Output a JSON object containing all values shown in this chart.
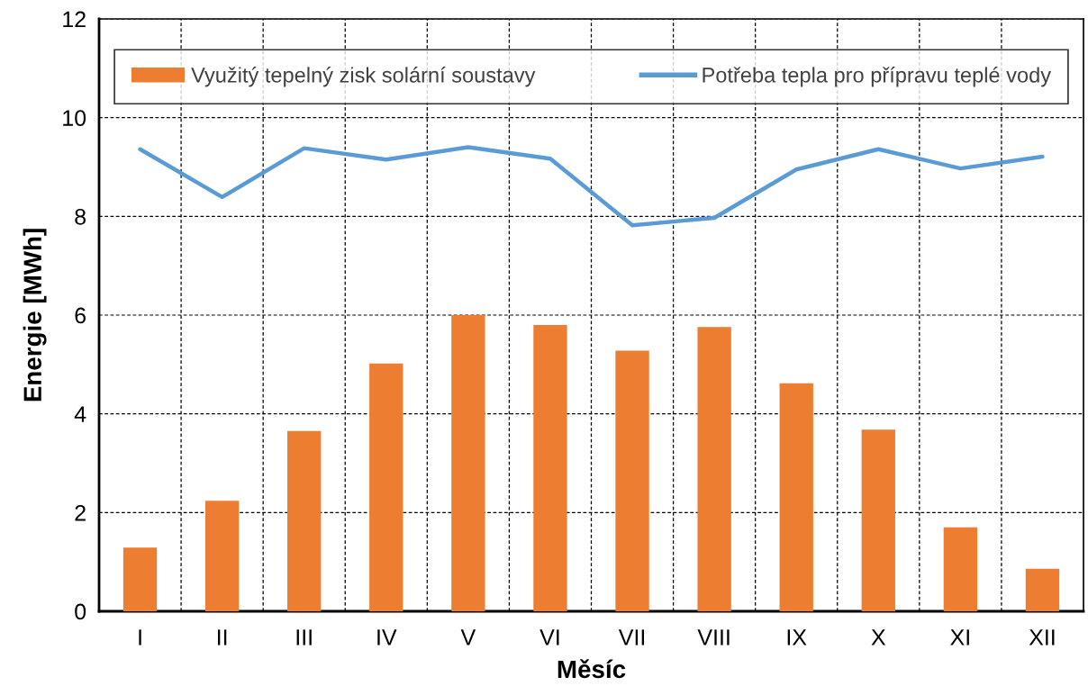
{
  "chart_data": {
    "type": "bar",
    "xlabel": "Měsíc",
    "ylabel": "Energie [MWh]",
    "categories": [
      "I",
      "II",
      "III",
      "IV",
      "V",
      "VI",
      "VII",
      "VIII",
      "IX",
      "X",
      "XI",
      "XII"
    ],
    "series": [
      {
        "name": "Využitý tepelný zisk solární soustavy",
        "color": "#ed7d31",
        "values": [
          1.29,
          2.24,
          3.65,
          5.02,
          6.0,
          5.8,
          5.28,
          5.76,
          4.62,
          3.68,
          1.7,
          0.86
        ]
      },
      {
        "name": "Potřeba tepla pro přípravu teplé vody",
        "type": "line",
        "color": "#5b9bd5",
        "values": [
          9.36,
          8.39,
          9.38,
          9.15,
          9.4,
          9.17,
          7.82,
          7.97,
          8.95,
          9.36,
          8.97,
          9.21
        ]
      }
    ],
    "ylim": [
      0,
      12
    ],
    "yticks": [
      0,
      2,
      4,
      6,
      8,
      10,
      12
    ],
    "grid": true,
    "legend": "top",
    "marker": "none",
    "line_style": "solid"
  }
}
